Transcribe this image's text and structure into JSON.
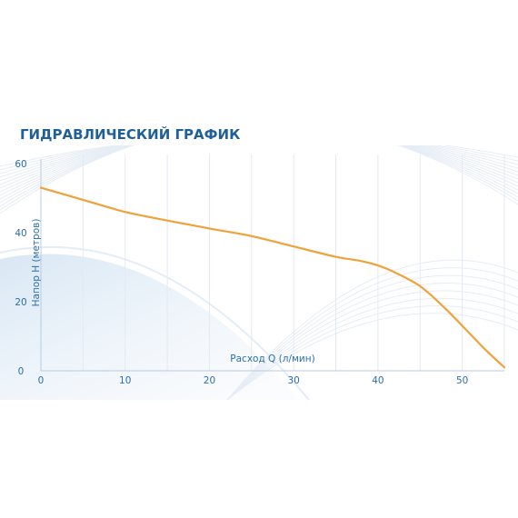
{
  "chart_data": {
    "type": "line",
    "title": "ГИДРАВЛИЧЕСКИЙ ГРАФИК",
    "xlabel": "Расход Q (л/мин)",
    "ylabel": "Напор H (метров)",
    "xlim": [
      0,
      55
    ],
    "ylim": [
      0,
      60
    ],
    "x_ticks": [
      "0",
      "10",
      "20",
      "30",
      "40",
      "50"
    ],
    "y_ticks": [
      "0",
      "20",
      "40",
      "60"
    ],
    "grid": "vertical",
    "series": [
      {
        "x": [
          0,
          5,
          10,
          15,
          20,
          25,
          30,
          35,
          38,
          40,
          42,
          45,
          48,
          51,
          53,
          55
        ],
        "y": [
          53,
          49.5,
          46,
          43.5,
          41.2,
          39,
          36,
          33,
          31.8,
          30.5,
          28.5,
          24.5,
          18,
          10.5,
          5.5,
          1
        ]
      }
    ]
  },
  "colors": {
    "title": "#1f5f9a",
    "tick": "#2c6ea8",
    "line": "#f0a13a",
    "grid": "#e3eaf2",
    "swoosh": "#dde9f5"
  }
}
